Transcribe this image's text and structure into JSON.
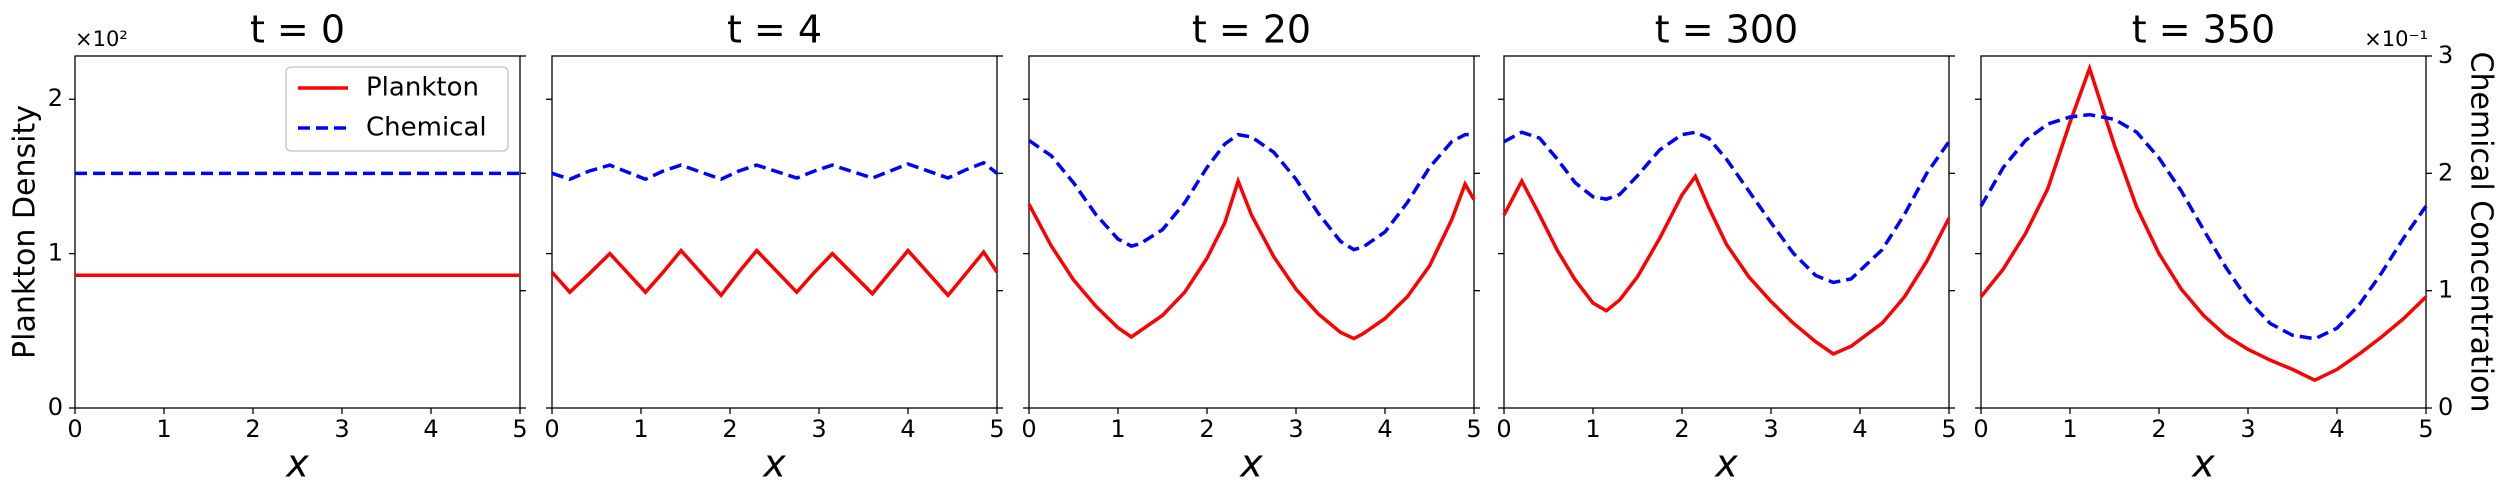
{
  "chart_data": [
    {
      "type": "line",
      "title": "t = 0",
      "xlabel": "x",
      "ylabel": "Plankton Density",
      "y_offset_label": "×10²",
      "xlim": [
        0,
        5
      ],
      "xticks": [
        0,
        1,
        2,
        3,
        4,
        5
      ],
      "ylim": [
        0,
        2.28
      ],
      "yticks": [
        0,
        1,
        2
      ],
      "legend": "upper right",
      "x": [
        0,
        5
      ],
      "series": [
        {
          "name": "Plankton",
          "color": "#ff0000",
          "linestyle": "solid",
          "values": [
            0.86,
            0.86
          ]
        },
        {
          "name": "Chemical",
          "color": "#0000ff",
          "linestyle": "dashed",
          "axis": "y2",
          "values": [
            2.0,
            2.0
          ]
        }
      ]
    },
    {
      "type": "line",
      "title": "t = 4",
      "xlabel": "x",
      "xlim": [
        0,
        5
      ],
      "xticks": [
        0,
        1,
        2,
        3,
        4,
        5
      ],
      "x": [
        0,
        0.2,
        0.42,
        0.65,
        1.05,
        1.25,
        1.45,
        1.9,
        2.1,
        2.3,
        2.75,
        2.95,
        3.15,
        3.6,
        3.8,
        4.0,
        4.45,
        4.65,
        4.85,
        5
      ],
      "series": [
        {
          "color": "#ff0000",
          "linestyle": "solid",
          "values": [
            0.88,
            0.75,
            0.87,
            1.0,
            0.75,
            0.88,
            1.02,
            0.73,
            0.88,
            1.02,
            0.75,
            0.88,
            1.0,
            0.74,
            0.88,
            1.02,
            0.73,
            0.87,
            1.01,
            0.88
          ]
        },
        {
          "color": "#0000ff",
          "linestyle": "dashed",
          "axis": "y2",
          "values": [
            2.0,
            1.95,
            2.02,
            2.07,
            1.95,
            2.02,
            2.07,
            1.95,
            2.02,
            2.07,
            1.96,
            2.02,
            2.07,
            1.96,
            2.02,
            2.08,
            1.96,
            2.03,
            2.09,
            2.0
          ]
        }
      ]
    },
    {
      "type": "line",
      "title": "t = 20",
      "xlabel": "x",
      "xlim": [
        0,
        5
      ],
      "xticks": [
        0,
        1,
        2,
        3,
        4,
        5
      ],
      "x": [
        0,
        0.25,
        0.5,
        0.75,
        1,
        1.15,
        1.25,
        1.5,
        1.75,
        2,
        2.2,
        2.35,
        2.5,
        2.75,
        3,
        3.25,
        3.5,
        3.65,
        3.75,
        4,
        4.25,
        4.5,
        4.75,
        4.9,
        5
      ],
      "series": [
        {
          "color": "#ff0000",
          "linestyle": "solid",
          "values": [
            1.32,
            1.05,
            0.83,
            0.66,
            0.52,
            0.46,
            0.5,
            0.6,
            0.75,
            0.97,
            1.2,
            1.47,
            1.25,
            0.98,
            0.77,
            0.61,
            0.49,
            0.45,
            0.48,
            0.58,
            0.72,
            0.92,
            1.22,
            1.45,
            1.35
          ]
        },
        {
          "color": "#0000ff",
          "linestyle": "dashed",
          "axis": "y2",
          "values": [
            2.28,
            2.15,
            1.92,
            1.65,
            1.44,
            1.38,
            1.4,
            1.52,
            1.75,
            2.05,
            2.25,
            2.33,
            2.31,
            2.18,
            1.95,
            1.66,
            1.42,
            1.35,
            1.37,
            1.5,
            1.75,
            2.05,
            2.27,
            2.33,
            2.33
          ]
        }
      ]
    },
    {
      "type": "line",
      "title": "t = 300",
      "xlabel": "x",
      "xlim": [
        0,
        5
      ],
      "xticks": [
        0,
        1,
        2,
        3,
        4,
        5
      ],
      "x": [
        0,
        0.2,
        0.4,
        0.6,
        0.8,
        1,
        1.15,
        1.3,
        1.5,
        1.75,
        2,
        2.15,
        2.3,
        2.5,
        2.75,
        3,
        3.25,
        3.5,
        3.7,
        3.9,
        4.25,
        4.5,
        4.75,
        5
      ],
      "series": [
        {
          "color": "#ff0000",
          "linestyle": "solid",
          "values": [
            1.25,
            1.47,
            1.25,
            1.02,
            0.83,
            0.68,
            0.63,
            0.7,
            0.85,
            1.1,
            1.38,
            1.5,
            1.3,
            1.06,
            0.85,
            0.69,
            0.55,
            0.43,
            0.35,
            0.4,
            0.55,
            0.72,
            0.95,
            1.23
          ]
        },
        {
          "color": "#0000ff",
          "linestyle": "dashed",
          "axis": "y2",
          "values": [
            2.27,
            2.35,
            2.3,
            2.12,
            1.92,
            1.8,
            1.78,
            1.82,
            1.98,
            2.2,
            2.33,
            2.35,
            2.3,
            2.12,
            1.85,
            1.58,
            1.32,
            1.13,
            1.07,
            1.1,
            1.35,
            1.65,
            2.0,
            2.27
          ]
        }
      ]
    },
    {
      "type": "line",
      "title": "t = 350",
      "xlabel": "x",
      "y2label": "Chemical Concentration",
      "y2_offset_label": "×10⁻¹",
      "xlim": [
        0,
        5
      ],
      "xticks": [
        0,
        1,
        2,
        3,
        4,
        5
      ],
      "y2lim": [
        0,
        3
      ],
      "y2ticks": [
        0,
        1,
        2,
        3
      ],
      "x": [
        0,
        0.25,
        0.5,
        0.75,
        1,
        1.22,
        1.5,
        1.75,
        2,
        2.25,
        2.5,
        2.75,
        3,
        3.25,
        3.5,
        3.75,
        4,
        4.25,
        4.5,
        4.75,
        5
      ],
      "series": [
        {
          "color": "#ff0000",
          "linestyle": "solid",
          "values": [
            0.72,
            0.9,
            1.13,
            1.42,
            1.85,
            2.2,
            1.7,
            1.3,
            1.0,
            0.77,
            0.6,
            0.47,
            0.38,
            0.31,
            0.25,
            0.18,
            0.25,
            0.35,
            0.46,
            0.58,
            0.72
          ]
        },
        {
          "color": "#0000ff",
          "linestyle": "dashed",
          "axis": "y2",
          "values": [
            1.72,
            2.05,
            2.28,
            2.42,
            2.48,
            2.5,
            2.46,
            2.35,
            2.13,
            1.85,
            1.52,
            1.2,
            0.92,
            0.72,
            0.62,
            0.59,
            0.68,
            0.88,
            1.15,
            1.45,
            1.72
          ]
        }
      ]
    }
  ]
}
